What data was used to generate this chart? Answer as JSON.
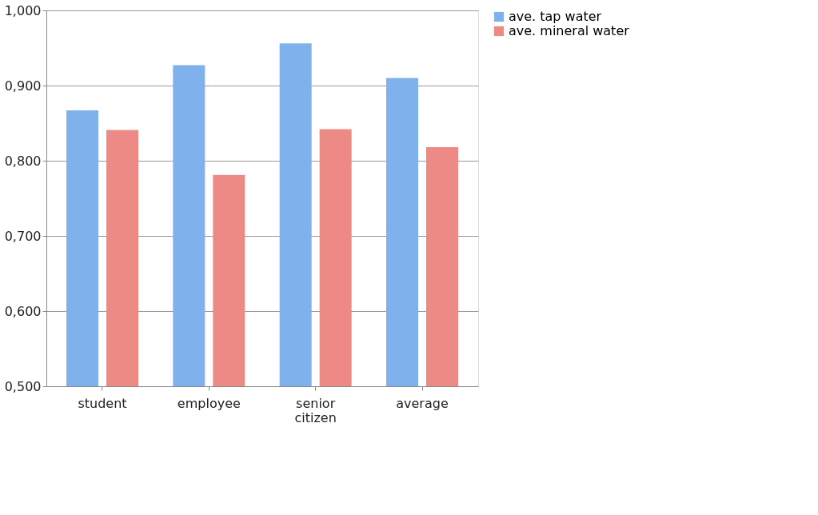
{
  "chart_data": {
    "type": "bar",
    "categories": [
      "student",
      "employee",
      "senior citizen",
      "average"
    ],
    "series": [
      {
        "name": "ave. tap water",
        "color": "#7fb2ec",
        "values": [
          0.867,
          0.927,
          0.956,
          0.91
        ]
      },
      {
        "name": "ave. mineral water",
        "color": "#ee8a85",
        "values": [
          0.841,
          0.781,
          0.842,
          0.818
        ]
      }
    ],
    "ylim": [
      0.5,
      1.0
    ],
    "yticks": [
      {
        "value": 0.5,
        "label": "0,500"
      },
      {
        "value": 0.6,
        "label": "0,600"
      },
      {
        "value": 0.7,
        "label": "0,700"
      },
      {
        "value": 0.8,
        "label": "0,800"
      },
      {
        "value": 0.9,
        "label": "0,900"
      },
      {
        "value": 1.0,
        "label": "1,000"
      }
    ],
    "grid": "y",
    "legend": "right"
  }
}
